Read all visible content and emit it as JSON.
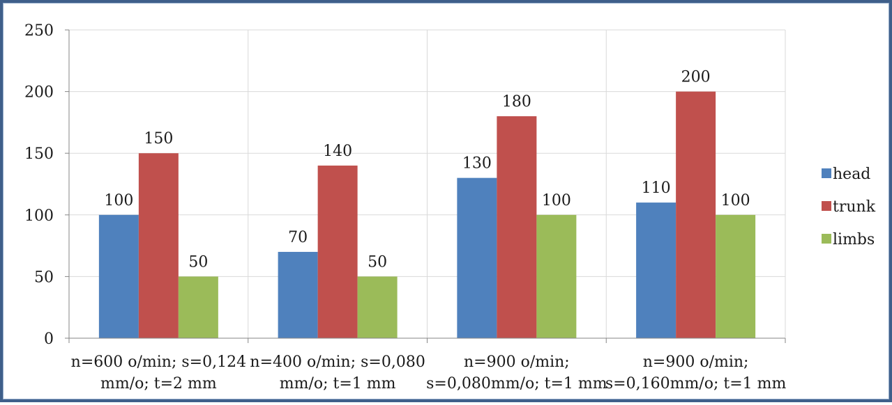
{
  "chart_data": {
    "type": "bar",
    "categories": [
      [
        "n=600 o/min; s=0,124",
        "mm/o; t=2 mm"
      ],
      [
        "n=400 o/min; s=0,080",
        "mm/o; t=1 mm"
      ],
      [
        "n=900 o/min;",
        "s=0,080mm/o; t=1 mm"
      ],
      [
        "n=900 o/min;",
        "s=0,160mm/o; t=1 mm"
      ]
    ],
    "series": [
      {
        "name": "head",
        "values": [
          100,
          70,
          130,
          110
        ],
        "color": "#4f81bd"
      },
      {
        "name": "trunk",
        "values": [
          150,
          140,
          180,
          200
        ],
        "color": "#c0504d"
      },
      {
        "name": "limbs",
        "values": [
          50,
          50,
          100,
          100
        ],
        "color": "#9bbb59"
      }
    ],
    "ylim": [
      0,
      250
    ],
    "yticks": [
      0,
      50,
      100,
      150,
      200,
      250
    ],
    "grid": true,
    "legend": "right",
    "title": "",
    "xlabel": "",
    "ylabel": ""
  }
}
